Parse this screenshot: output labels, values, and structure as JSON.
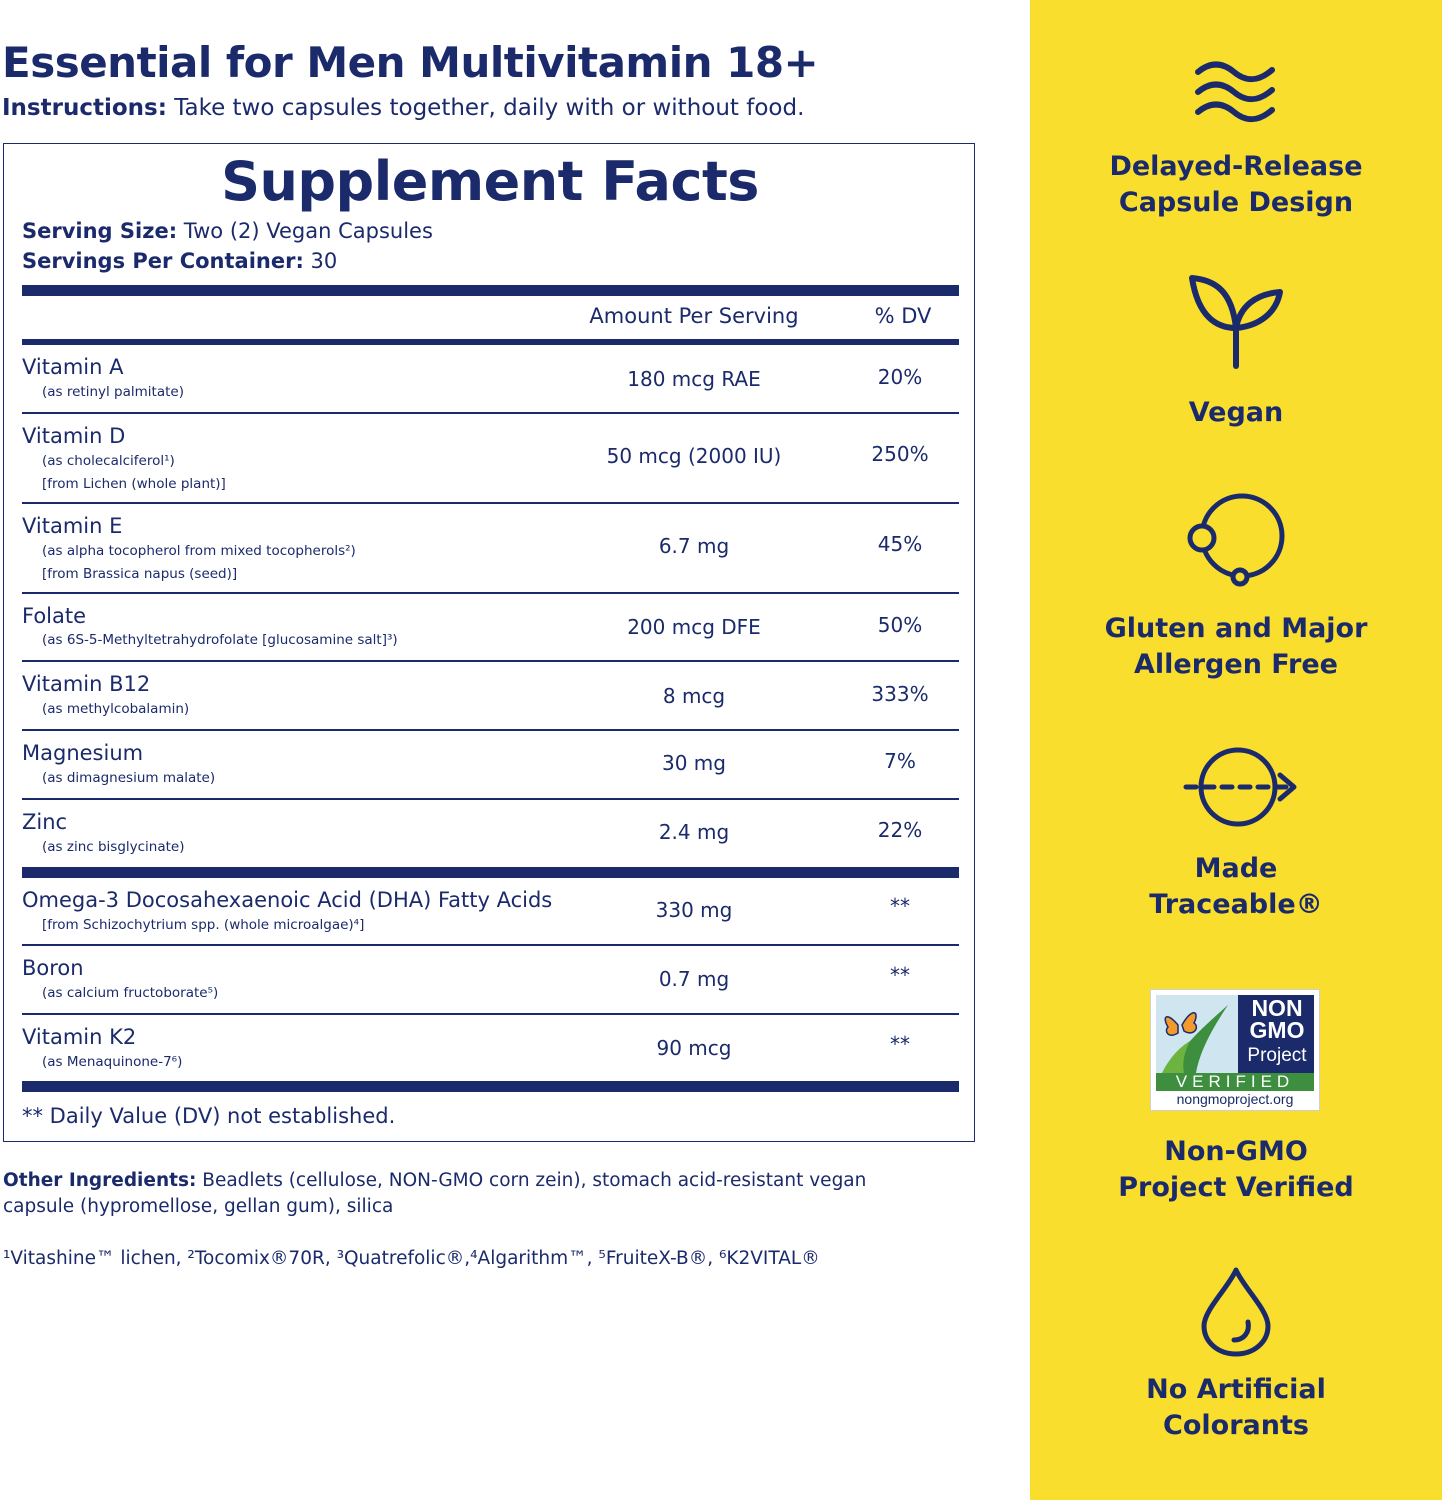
{
  "header": {
    "title": "Essential for Men Multivitamin 18+",
    "instructions_label": "Instructions:",
    "instructions_text": "Take two capsules together, daily with or without food."
  },
  "facts": {
    "title": "Supplement Facts",
    "serving_size_label": "Serving Size:",
    "serving_size_value": "Two (2) Vegan Capsules",
    "servings_per_container_label": "Servings Per Container:",
    "servings_per_container_value": "30",
    "col_amount": "Amount Per Serving",
    "col_dv": "% DV",
    "nutrients": [
      {
        "name": "Vitamin A",
        "sub1": "(as retinyl palmitate)",
        "sub2": "",
        "amount": "180 mcg RAE",
        "dv": "20%"
      },
      {
        "name": "Vitamin D",
        "sub1": "(as cholecalciferol¹)",
        "sub2": "[from Lichen (whole plant)]",
        "amount": "50 mcg (2000 IU)",
        "dv": "250%"
      },
      {
        "name": "Vitamin E",
        "sub1": "(as alpha tocopherol from mixed tocopherols²)",
        "sub2": "[from Brassica napus (seed)]",
        "amount": "6.7 mg",
        "dv": "45%"
      },
      {
        "name": "Folate",
        "sub1": "(as 6S-5-Methyltetrahydrofolate [glucosamine salt]³)",
        "sub2": "",
        "amount": "200 mcg DFE",
        "dv": "50%"
      },
      {
        "name": "Vitamin B12",
        "sub1": "(as methylcobalamin)",
        "sub2": "",
        "amount": "8 mcg",
        "dv": "333%"
      },
      {
        "name": "Magnesium",
        "sub1": "(as dimagnesium malate)",
        "sub2": "",
        "amount": "30 mg",
        "dv": "7%"
      },
      {
        "name": "Zinc",
        "sub1": "(as zinc bisglycinate)",
        "sub2": "",
        "amount": "2.4 mg",
        "dv": "22%"
      },
      {
        "name": "Omega-3 Docosahexaenoic Acid (DHA) Fatty Acids",
        "sub1": "[from Schizochytrium spp. (whole microalgae)⁴]",
        "sub2": "",
        "amount": "330 mg",
        "dv": "**"
      },
      {
        "name": "Boron",
        "sub1": "(as calcium fructoborate⁵)",
        "sub2": "",
        "amount": "0.7 mg",
        "dv": "**"
      },
      {
        "name": "Vitamin K2",
        "sub1": "(as Menaquinone-7⁶)",
        "sub2": "",
        "amount": "90 mcg",
        "dv": "**"
      }
    ],
    "footnote": "** Daily Value (DV) not established."
  },
  "other_ingredients": {
    "label": "Other Ingredients:",
    "text": "Beadlets (cellulose, NON-GMO corn zein), stomach acid-resistant vegan capsule (hypromellose, gellan gum), silica"
  },
  "trademarks": "¹Vitashine™ lichen, ²Tocomix®70R, ³Quatrefolic®,⁴Algarithm™, ⁵FruiteX-B®, ⁶K2VITAL®",
  "features": [
    {
      "icon": "waves-icon",
      "line1": "Delayed-Release",
      "line2": "Capsule Design"
    },
    {
      "icon": "sprout-icon",
      "line1": "Vegan",
      "line2": ""
    },
    {
      "icon": "molecule-icon",
      "line1": "Gluten and Major",
      "line2": "Allergen Free"
    },
    {
      "icon": "traceable-arrow-icon",
      "line1": "Made",
      "line2": "Traceable®"
    },
    {
      "icon": "non-gmo-badge",
      "line1": "Non-GMO",
      "line2": "Project Verified"
    },
    {
      "icon": "drop-icon",
      "line1": "No Artificial",
      "line2": "Colorants"
    }
  ],
  "badge": {
    "non": "NON",
    "gmo": "GMO",
    "project": "Project",
    "verified": "VERIFIED",
    "url": "nongmoproject.org"
  },
  "colors": {
    "navy": "#1b2a6b",
    "yellow": "#f9de2e",
    "badge_green": "#3d8f3f",
    "badge_orange": "#f29a2e"
  }
}
